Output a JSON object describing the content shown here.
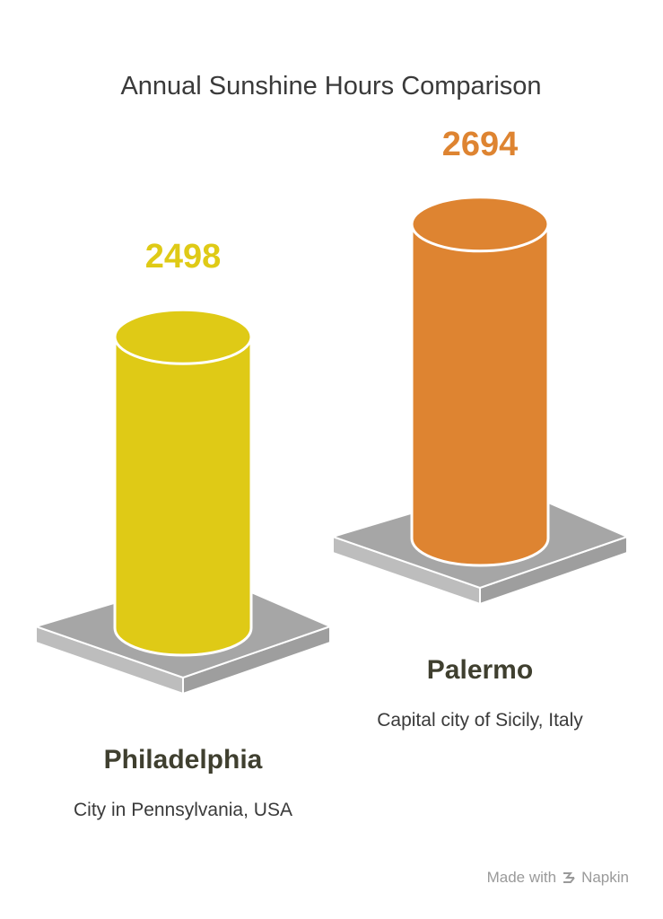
{
  "chart_data": {
    "type": "bar",
    "title": "Annual Sunshine Hours Comparison",
    "categories": [
      "Philadelphia",
      "Palermo"
    ],
    "descriptions": [
      "City in Pennsylvania, USA",
      "Capital city of Sicily, Italy"
    ],
    "values": [
      2498,
      2694
    ],
    "colors": [
      "#dfca16",
      "#de8431"
    ]
  },
  "footer": {
    "prefix": "Made with",
    "brand": "Napkin"
  }
}
